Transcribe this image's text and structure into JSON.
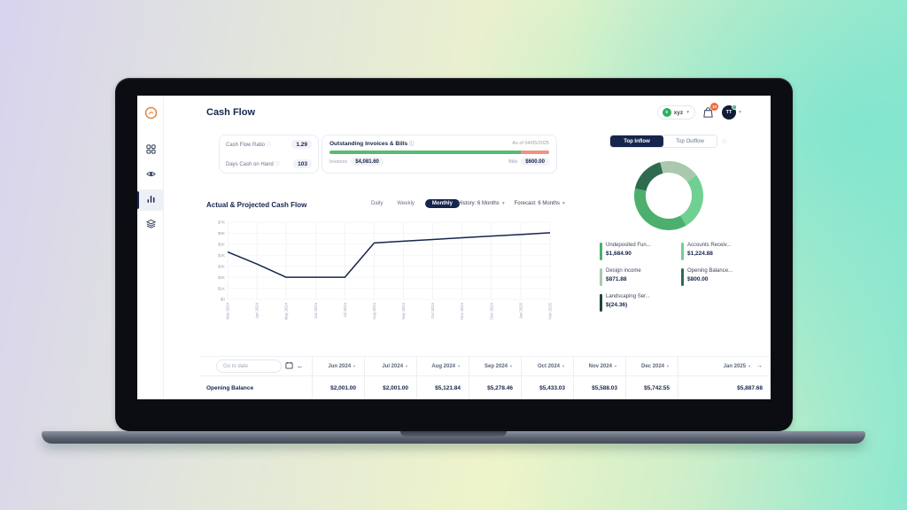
{
  "app": {
    "title": "Cash Flow"
  },
  "topbar": {
    "org_selector": {
      "label": "xyz",
      "icon": "org-avatar-green"
    },
    "notifications": {
      "icon": "shopping-bag-icon",
      "badge_count": "10"
    },
    "user": {
      "initials": "TT",
      "status": "online"
    }
  },
  "sidebar": {
    "logo_icon": "brand-coin-logo-orange",
    "items": [
      {
        "icon": "dashboard-grid-icon",
        "active": false
      },
      {
        "icon": "eye-icon",
        "active": false
      },
      {
        "icon": "bar-chart-icon",
        "active": true
      },
      {
        "icon": "layers-icon",
        "active": false
      }
    ]
  },
  "metrics": {
    "rows": [
      {
        "label": "Cash Flow Ratio",
        "value": "1.29"
      },
      {
        "label": "Days Cash on Hand",
        "value": "103"
      }
    ]
  },
  "outstanding": {
    "title": "Outstanding Invoices & Bills",
    "as_of": "As of 04/05/2025",
    "invoices_label": "Invoices",
    "invoices_value": "$4,081.60",
    "bills_label": "Bills",
    "bills_value": "$600.00",
    "invoices_pct": 87,
    "invoices_color": "#57bb72",
    "bills_color": "#ef9384"
  },
  "inflow_panel": {
    "tabs": [
      "Top Inflow",
      "Top Outflow"
    ],
    "active_tab": "Top Inflow",
    "donut": {
      "start_deg": 150,
      "segments": [
        {
          "label": "Undeposited Funds",
          "color": "#4caf6e",
          "deg": 132.4
        },
        {
          "label": "Opening Balance",
          "color": "#2e6b4f",
          "deg": 62.9
        },
        {
          "label": "Design income",
          "color": "#a9c8ad",
          "deg": 68.5
        },
        {
          "label": "Accounts Receivable",
          "color": "#6fd092",
          "deg": 96.2
        }
      ]
    },
    "legend": [
      {
        "label": "Undeposited Fun...",
        "value": "$1,684.90",
        "color": "#4caf6e"
      },
      {
        "label": "Accounts Receiv...",
        "value": "$1,224.88",
        "color": "#6fd092"
      },
      {
        "label": "Design income",
        "value": "$871.88",
        "color": "#a9c8ad"
      },
      {
        "label": "Opening Balance...",
        "value": "$800.00",
        "color": "#2e6b4f"
      },
      {
        "label": "Landscaping Ser...",
        "value": "$(24.36)",
        "color": "#1c4732"
      }
    ]
  },
  "cashflow_section": {
    "title": "Actual & Projected Cash Flow",
    "tabs": [
      "Daily",
      "Weekly",
      "Monthly"
    ],
    "active_tab": "Monthly",
    "history_label": "History: 6 Months",
    "forecast_label": "Forecast: 6 Months"
  },
  "chart_data": [
    {
      "type": "line",
      "title": "Actual & Projected Cash Flow",
      "x": [
        "Mar 2024",
        "Apr 2024",
        "May 2024",
        "Jun 2024",
        "Jul 2024",
        "Aug 2024",
        "Sep 2024",
        "Oct 2024",
        "Nov 2024",
        "Dec 2024",
        "Jan 2025",
        "Feb 2025"
      ],
      "values": [
        4300,
        3200,
        2001,
        2001,
        2001,
        5122,
        5278,
        5433,
        5588,
        5743,
        5888,
        6040
      ],
      "y_ticks": [
        "$7K",
        "$6K",
        "$5K",
        "$4K",
        "$3K",
        "$2K",
        "$1K",
        "$0"
      ],
      "ylim": [
        0,
        7000
      ],
      "line_color": "#16254c",
      "grid": true,
      "legend_position": "none"
    },
    {
      "type": "pie",
      "title": "Top Inflow",
      "categories": [
        "Undeposited Funds",
        "Accounts Receivable",
        "Design income",
        "Opening Balance",
        "Landscaping Services"
      ],
      "values": [
        1684.9,
        1224.88,
        871.88,
        800.0,
        -24.36
      ]
    }
  ],
  "table": {
    "goto_placeholder": "Go to date",
    "row_label": "Opening Balance",
    "columns": [
      "Jun 2024",
      "Jul 2024",
      "Aug 2024",
      "Sep 2024",
      "Oct 2024",
      "Nov 2024",
      "Dec 2024",
      "Jan 2025"
    ],
    "values": [
      "$2,001.00",
      "$2,001.00",
      "$5,121.84",
      "$5,278.46",
      "$5,433.03",
      "$5,588.03",
      "$5,742.55",
      "$5,887.68"
    ]
  }
}
